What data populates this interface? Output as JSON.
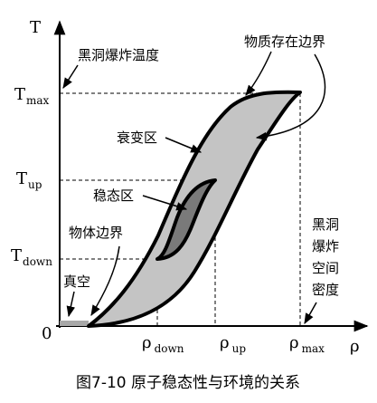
{
  "figure": {
    "caption": "图7-10 原子稳态性与环境的关系",
    "colors": {
      "region_fill": "#c4c4c4",
      "inner_fill": "#7a7a7a",
      "vacuum_fill": "#a8a8a8",
      "stroke": "#000000"
    },
    "axes": {
      "origin": "0",
      "y_axis": "T",
      "x_axis": "ρ",
      "y_ticks": [
        {
          "base": "T",
          "sub": "max"
        },
        {
          "base": "T",
          "sub": "up"
        },
        {
          "base": "T",
          "sub": "down"
        }
      ],
      "x_ticks": [
        {
          "base": "ρ",
          "sub": "down"
        },
        {
          "base": "ρ",
          "sub": "up"
        },
        {
          "base": "ρ",
          "sub": "max"
        }
      ]
    },
    "labels": {
      "black_hole_temp": "黑洞爆炸温度",
      "matter_boundary": "物质存在边界",
      "decay_zone": "衰变区",
      "stable_zone": "稳态区",
      "object_boundary": "物体边界",
      "vacuum": "真空",
      "black_hole_density": [
        "黑洞",
        "爆炸",
        "空间",
        "密度"
      ]
    }
  }
}
